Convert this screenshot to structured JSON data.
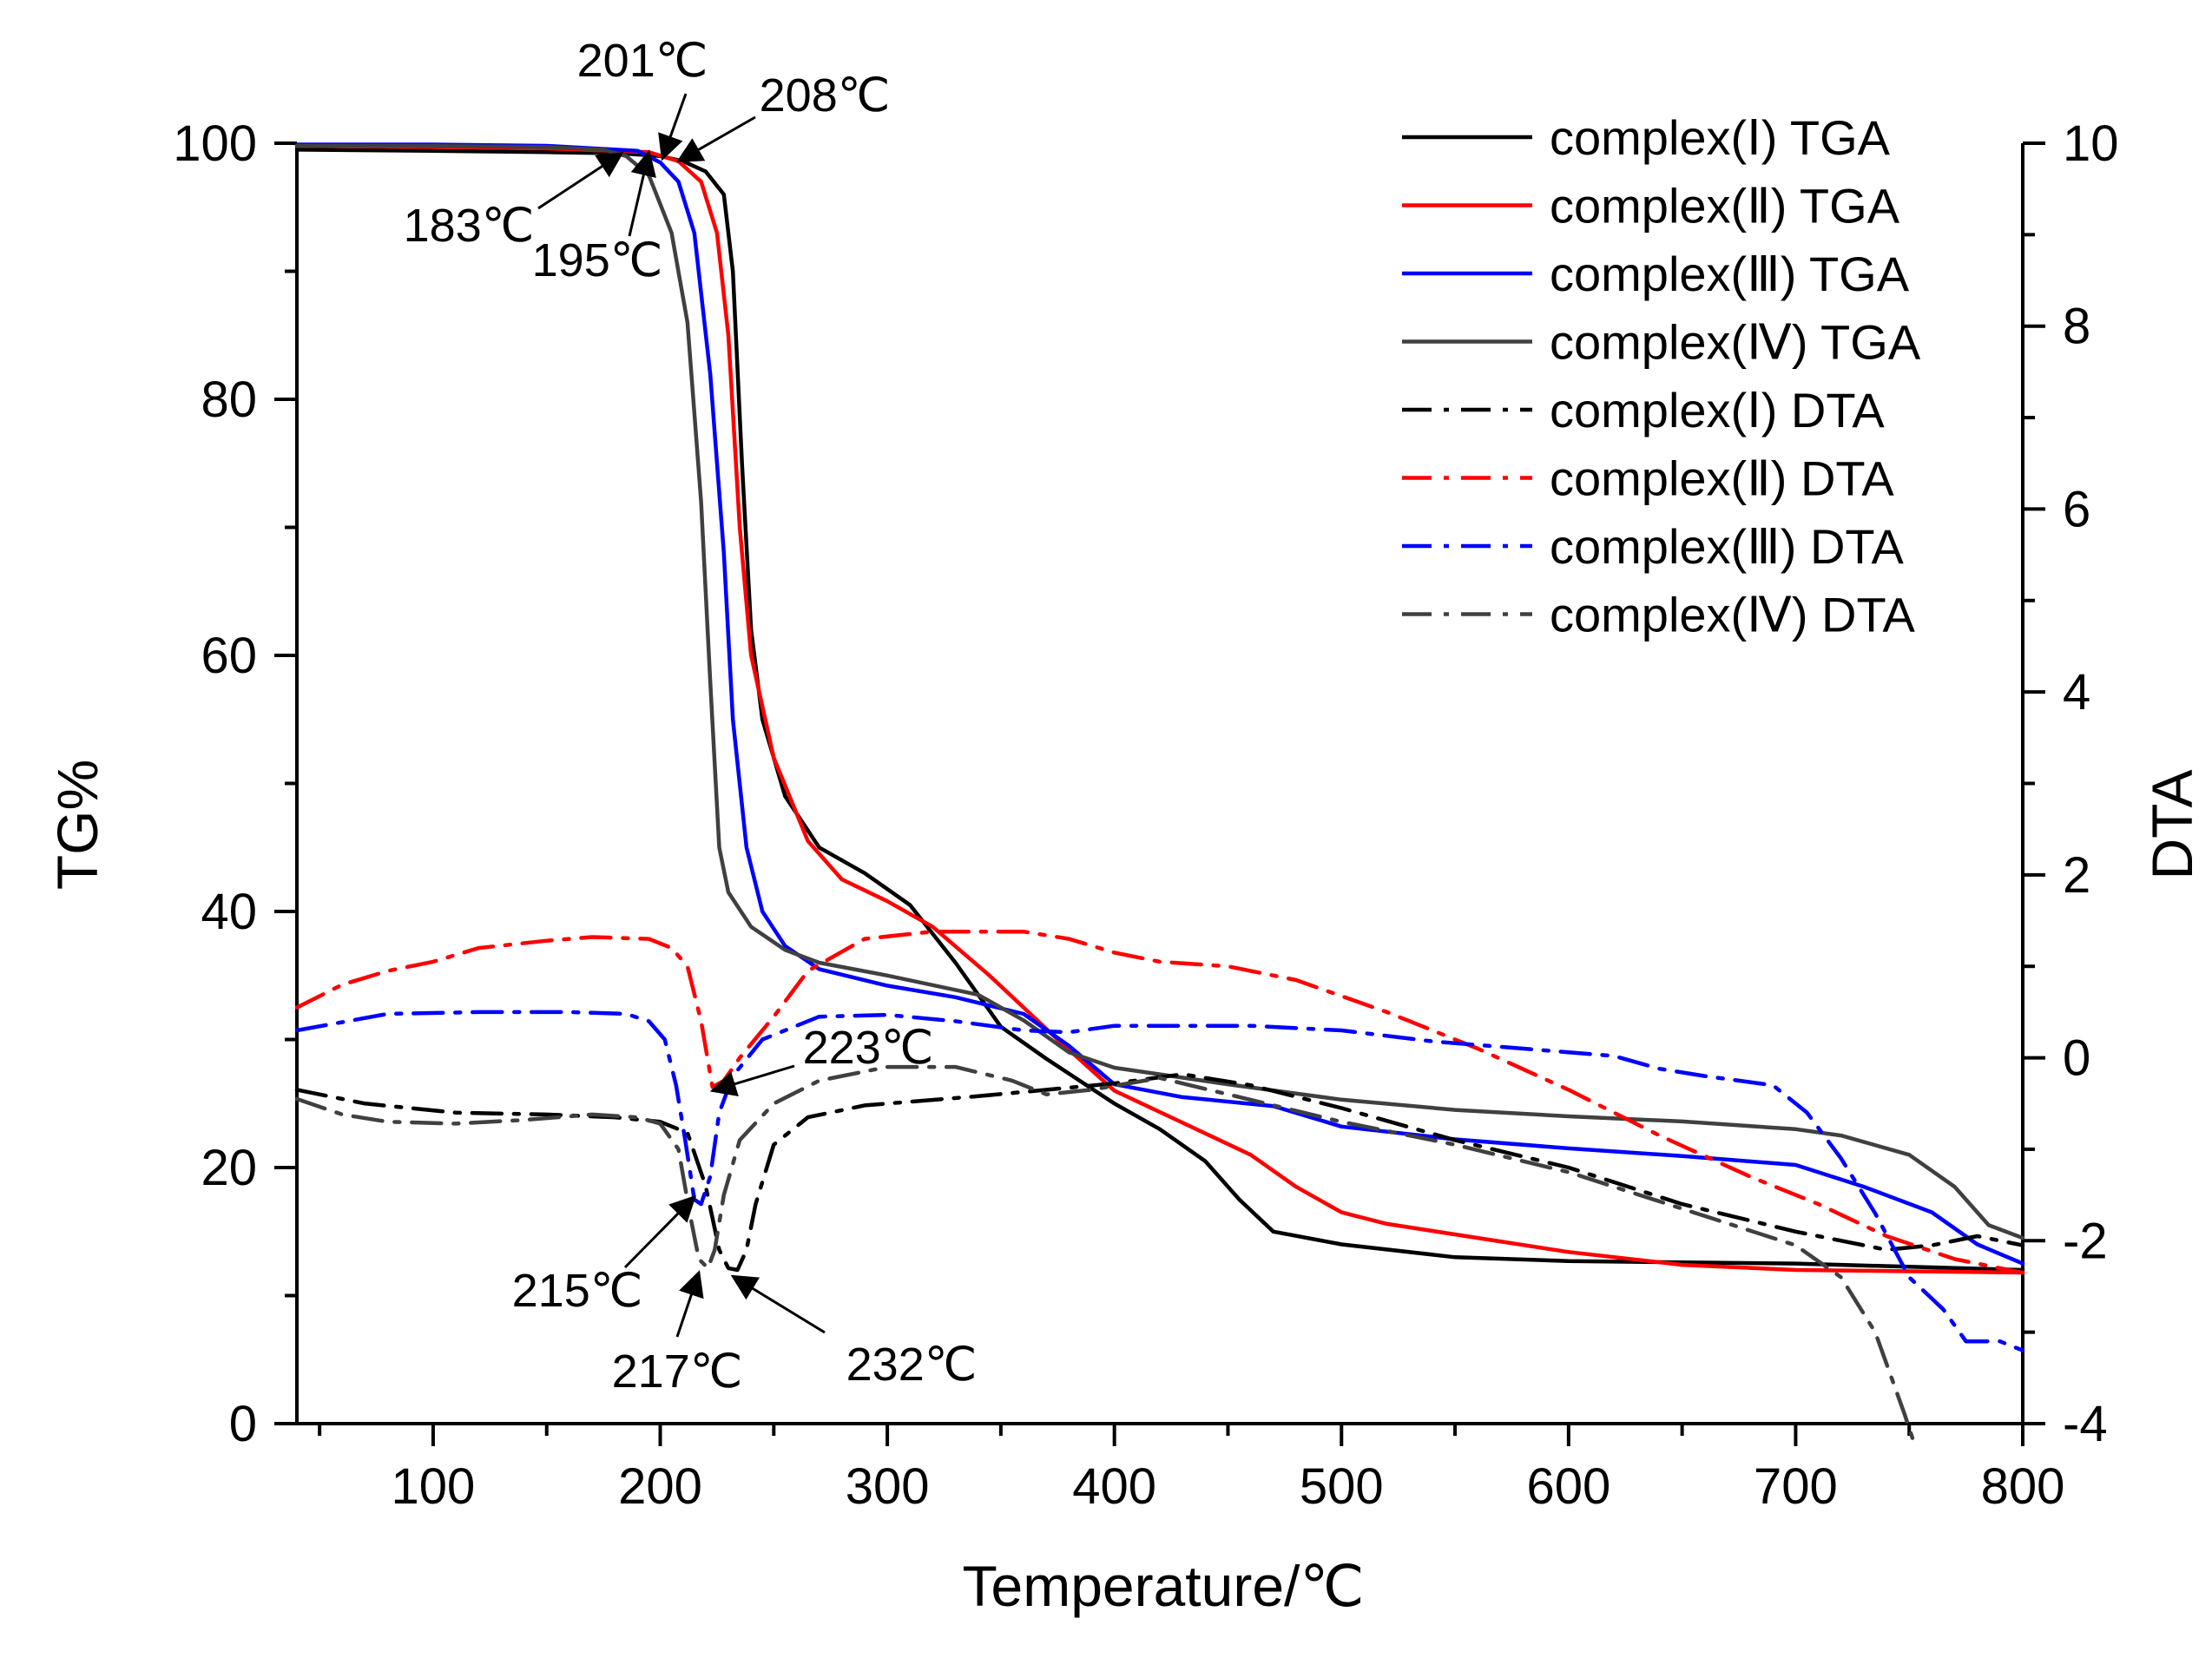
{
  "chart_data": {
    "type": "line",
    "title": "",
    "xlabel": "Temperature/℃",
    "ylabel": "TG%",
    "y2label": "DTA",
    "xlim": [
      40,
      800
    ],
    "ylim": [
      0,
      100
    ],
    "y2lim": [
      -4,
      10
    ],
    "x_ticks": [
      100,
      200,
      300,
      400,
      500,
      600,
      700,
      800
    ],
    "x_tick_labels": [
      "100",
      "200",
      "300",
      "400",
      "500",
      "600",
      "700",
      "800"
    ],
    "y_ticks": [
      0,
      20,
      40,
      60,
      80,
      100
    ],
    "y_tick_labels": [
      "0",
      "20",
      "40",
      "60",
      "80",
      "100"
    ],
    "y2_ticks": [
      -4,
      -2,
      0,
      2,
      4,
      6,
      8,
      10
    ],
    "y2_tick_labels": [
      "-4",
      "-2",
      "0",
      "2",
      "4",
      "6",
      "8",
      "10"
    ],
    "legend_position": "top-right",
    "series": [
      {
        "name": "complex(Ⅰ) TGA",
        "axis": "left",
        "color": "#000000",
        "dash": "solid",
        "points": [
          [
            40,
            99.5
          ],
          [
            100,
            99.4
          ],
          [
            150,
            99.3
          ],
          [
            183,
            99.2
          ],
          [
            200,
            99
          ],
          [
            210,
            98.6
          ],
          [
            220,
            97.8
          ],
          [
            228,
            96
          ],
          [
            232,
            90
          ],
          [
            236,
            75
          ],
          [
            240,
            62
          ],
          [
            245,
            55
          ],
          [
            255,
            49
          ],
          [
            270,
            45
          ],
          [
            290,
            43
          ],
          [
            310,
            40.5
          ],
          [
            330,
            36
          ],
          [
            350,
            31
          ],
          [
            370,
            28.5
          ],
          [
            400,
            25
          ],
          [
            420,
            23
          ],
          [
            440,
            20.5
          ],
          [
            455,
            17.5
          ],
          [
            470,
            15
          ],
          [
            500,
            14
          ],
          [
            550,
            13
          ],
          [
            600,
            12.7
          ],
          [
            650,
            12.6
          ],
          [
            700,
            12.5
          ],
          [
            800,
            12
          ]
        ]
      },
      {
        "name": "complex(Ⅱ) TGA",
        "axis": "left",
        "color": "#ff0000",
        "dash": "solid",
        "points": [
          [
            40,
            99.8
          ],
          [
            100,
            99.7
          ],
          [
            150,
            99.6
          ],
          [
            195,
            99.3
          ],
          [
            208,
            98.6
          ],
          [
            218,
            97
          ],
          [
            225,
            93
          ],
          [
            230,
            85
          ],
          [
            235,
            70
          ],
          [
            240,
            60
          ],
          [
            250,
            52
          ],
          [
            265,
            45.5
          ],
          [
            280,
            42.5
          ],
          [
            300,
            40.8
          ],
          [
            320,
            38.8
          ],
          [
            345,
            35
          ],
          [
            375,
            30
          ],
          [
            400,
            26
          ],
          [
            430,
            23.5
          ],
          [
            460,
            21
          ],
          [
            480,
            18.5
          ],
          [
            500,
            16.5
          ],
          [
            520,
            15.6
          ],
          [
            560,
            14.5
          ],
          [
            600,
            13.4
          ],
          [
            650,
            12.4
          ],
          [
            700,
            12
          ],
          [
            800,
            11.8
          ]
        ]
      },
      {
        "name": "complex(Ⅲ) TGA",
        "axis": "left",
        "color": "#0000ff",
        "dash": "solid",
        "points": [
          [
            40,
            99.9
          ],
          [
            100,
            99.9
          ],
          [
            150,
            99.8
          ],
          [
            190,
            99.4
          ],
          [
            200,
            98.5
          ],
          [
            208,
            97
          ],
          [
            215,
            93
          ],
          [
            222,
            82
          ],
          [
            228,
            68
          ],
          [
            232,
            55
          ],
          [
            238,
            45
          ],
          [
            245,
            40
          ],
          [
            255,
            37.3
          ],
          [
            270,
            35.5
          ],
          [
            300,
            34.2
          ],
          [
            330,
            33.3
          ],
          [
            360,
            32
          ],
          [
            380,
            29.5
          ],
          [
            400,
            26.5
          ],
          [
            430,
            25.5
          ],
          [
            470,
            24.8
          ],
          [
            500,
            23.2
          ],
          [
            550,
            22.2
          ],
          [
            600,
            21.5
          ],
          [
            650,
            20.9
          ],
          [
            700,
            20.2
          ],
          [
            730,
            18.5
          ],
          [
            760,
            16.5
          ],
          [
            780,
            14
          ],
          [
            800,
            12.5
          ]
        ]
      },
      {
        "name": "complex(Ⅳ) TGA",
        "axis": "left",
        "color": "#404040",
        "dash": "solid",
        "points": [
          [
            40,
            99.8
          ],
          [
            100,
            99.8
          ],
          [
            150,
            99.7
          ],
          [
            175,
            99.5
          ],
          [
            185,
            99
          ],
          [
            195,
            97.5
          ],
          [
            205,
            93
          ],
          [
            212,
            86
          ],
          [
            218,
            72
          ],
          [
            222,
            58
          ],
          [
            226,
            45
          ],
          [
            230,
            41.5
          ],
          [
            240,
            38.8
          ],
          [
            255,
            37
          ],
          [
            270,
            36
          ],
          [
            300,
            35
          ],
          [
            340,
            33.5
          ],
          [
            360,
            31.5
          ],
          [
            380,
            29
          ],
          [
            400,
            27.8
          ],
          [
            450,
            26.5
          ],
          [
            500,
            25.3
          ],
          [
            550,
            24.5
          ],
          [
            600,
            24
          ],
          [
            650,
            23.6
          ],
          [
            700,
            23
          ],
          [
            720,
            22.5
          ],
          [
            750,
            21
          ],
          [
            770,
            18.5
          ],
          [
            785,
            15.5
          ],
          [
            800,
            14.5
          ]
        ]
      },
      {
        "name": "complex(Ⅰ) DTA",
        "axis": "right",
        "color": "#000000",
        "dash": "dashdot",
        "points": [
          [
            40,
            -0.35
          ],
          [
            70,
            -0.5
          ],
          [
            110,
            -0.6
          ],
          [
            150,
            -0.62
          ],
          [
            180,
            -0.65
          ],
          [
            200,
            -0.7
          ],
          [
            212,
            -0.82
          ],
          [
            220,
            -1.4
          ],
          [
            226,
            -2.1
          ],
          [
            230,
            -2.3
          ],
          [
            234,
            -2.32
          ],
          [
            238,
            -2.1
          ],
          [
            242,
            -1.6
          ],
          [
            250,
            -0.95
          ],
          [
            265,
            -0.65
          ],
          [
            290,
            -0.52
          ],
          [
            340,
            -0.42
          ],
          [
            400,
            -0.28
          ],
          [
            430,
            -0.18
          ],
          [
            460,
            -0.3
          ],
          [
            500,
            -0.55
          ],
          [
            550,
            -0.9
          ],
          [
            600,
            -1.2
          ],
          [
            650,
            -1.6
          ],
          [
            700,
            -1.9
          ],
          [
            740,
            -2.1
          ],
          [
            760,
            -2.05
          ],
          [
            780,
            -1.95
          ],
          [
            800,
            -2.05
          ]
        ]
      },
      {
        "name": "complex(Ⅱ) DTA",
        "axis": "right",
        "color": "#ff0000",
        "dash": "dashdot",
        "points": [
          [
            40,
            0.55
          ],
          [
            60,
            0.8
          ],
          [
            80,
            0.95
          ],
          [
            100,
            1.05
          ],
          [
            120,
            1.2
          ],
          [
            150,
            1.28
          ],
          [
            170,
            1.32
          ],
          [
            195,
            1.3
          ],
          [
            205,
            1.2
          ],
          [
            212,
            1.0
          ],
          [
            218,
            0.4
          ],
          [
            223,
            -0.32
          ],
          [
            228,
            -0.25
          ],
          [
            235,
            0
          ],
          [
            250,
            0.45
          ],
          [
            265,
            0.95
          ],
          [
            290,
            1.3
          ],
          [
            320,
            1.38
          ],
          [
            360,
            1.38
          ],
          [
            380,
            1.3
          ],
          [
            400,
            1.15
          ],
          [
            420,
            1.05
          ],
          [
            450,
            1.0
          ],
          [
            480,
            0.85
          ],
          [
            520,
            0.5
          ],
          [
            560,
            0.1
          ],
          [
            600,
            -0.35
          ],
          [
            640,
            -0.85
          ],
          [
            680,
            -1.3
          ],
          [
            710,
            -1.6
          ],
          [
            740,
            -1.95
          ],
          [
            770,
            -2.2
          ],
          [
            800,
            -2.35
          ]
        ]
      },
      {
        "name": "complex(Ⅲ) DTA",
        "axis": "right",
        "color": "#0000ff",
        "dash": "dashdot",
        "points": [
          [
            40,
            0.3
          ],
          [
            80,
            0.48
          ],
          [
            120,
            0.5
          ],
          [
            160,
            0.5
          ],
          [
            185,
            0.48
          ],
          [
            195,
            0.4
          ],
          [
            202,
            0.2
          ],
          [
            207,
            -0.3
          ],
          [
            211,
            -0.9
          ],
          [
            215,
            -1.55
          ],
          [
            218,
            -1.6
          ],
          [
            222,
            -1.3
          ],
          [
            226,
            -0.6
          ],
          [
            232,
            -0.2
          ],
          [
            245,
            0.2
          ],
          [
            270,
            0.45
          ],
          [
            300,
            0.47
          ],
          [
            330,
            0.4
          ],
          [
            360,
            0.3
          ],
          [
            380,
            0.28
          ],
          [
            400,
            0.35
          ],
          [
            460,
            0.35
          ],
          [
            500,
            0.3
          ],
          [
            540,
            0.18
          ],
          [
            580,
            0.1
          ],
          [
            620,
            0.02
          ],
          [
            640,
            -0.12
          ],
          [
            660,
            -0.2
          ],
          [
            690,
            -0.3
          ],
          [
            705,
            -0.6
          ],
          [
            720,
            -1.1
          ],
          [
            735,
            -1.7
          ],
          [
            750,
            -2.4
          ],
          [
            765,
            -2.75
          ],
          [
            775,
            -3.1
          ],
          [
            790,
            -3.1
          ],
          [
            800,
            -3.2
          ]
        ]
      },
      {
        "name": "complex(Ⅳ) DTA",
        "axis": "right",
        "color": "#404040",
        "dash": "dashdot",
        "points": [
          [
            40,
            -0.45
          ],
          [
            60,
            -0.62
          ],
          [
            80,
            -0.7
          ],
          [
            110,
            -0.72
          ],
          [
            140,
            -0.68
          ],
          [
            170,
            -0.62
          ],
          [
            190,
            -0.65
          ],
          [
            200,
            -0.72
          ],
          [
            208,
            -1.0
          ],
          [
            213,
            -1.7
          ],
          [
            217,
            -2.2
          ],
          [
            221,
            -2.3
          ],
          [
            224,
            -2.1
          ],
          [
            228,
            -1.5
          ],
          [
            235,
            -0.9
          ],
          [
            250,
            -0.5
          ],
          [
            270,
            -0.25
          ],
          [
            300,
            -0.1
          ],
          [
            330,
            -0.1
          ],
          [
            355,
            -0.25
          ],
          [
            370,
            -0.4
          ],
          [
            390,
            -0.35
          ],
          [
            420,
            -0.22
          ],
          [
            450,
            -0.4
          ],
          [
            500,
            -0.7
          ],
          [
            550,
            -0.95
          ],
          [
            600,
            -1.25
          ],
          [
            650,
            -1.65
          ],
          [
            700,
            -2.05
          ],
          [
            720,
            -2.4
          ],
          [
            735,
            -3.0
          ],
          [
            748,
            -3.9
          ],
          [
            752,
            -4.2
          ]
        ]
      }
    ],
    "annotations": [
      {
        "text": "201℃",
        "target": [
          201,
          98.8
        ]
      },
      {
        "text": "208℃",
        "target": [
          208,
          98.6
        ]
      },
      {
        "text": "183℃",
        "target": [
          183,
          99.2
        ]
      },
      {
        "text": "195℃",
        "target": [
          195,
          99.3
        ]
      },
      {
        "text": "223℃",
        "target": [
          223,
          26
        ]
      },
      {
        "text": "215℃",
        "target": [
          215,
          17.7
        ]
      },
      {
        "text": "217℃",
        "target": [
          217,
          11.8
        ]
      },
      {
        "text": "232℃",
        "target": [
          232,
          11.5
        ]
      }
    ],
    "grid": false
  }
}
